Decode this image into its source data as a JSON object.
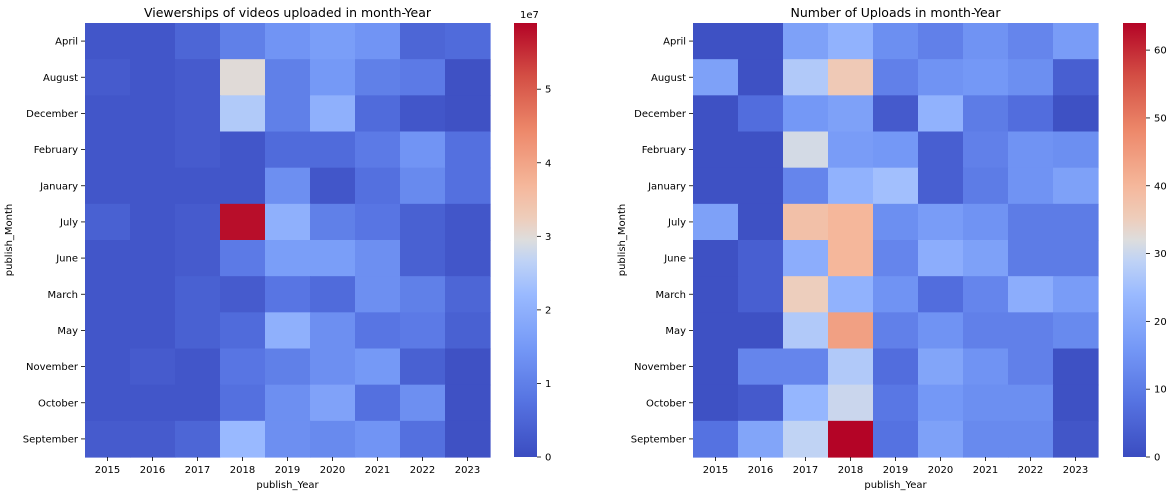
{
  "chart_data": [
    {
      "type": "heatmap",
      "title": "Viewerships of videos uploaded in month-Year",
      "xlabel": "publish_Year",
      "ylabel": "publish_Month",
      "x": [
        "2015",
        "2016",
        "2017",
        "2018",
        "2019",
        "2020",
        "2021",
        "2022",
        "2023"
      ],
      "y": [
        "April",
        "August",
        "December",
        "February",
        "January",
        "July",
        "June",
        "March",
        "May",
        "November",
        "October",
        "September"
      ],
      "values": [
        [
          0.2,
          0.2,
          0.5,
          1.0,
          1.4,
          1.6,
          1.4,
          0.5,
          0.6
        ],
        [
          0.3,
          0.2,
          0.3,
          3.0,
          1.0,
          1.5,
          1.0,
          0.9,
          0.1
        ],
        [
          0.2,
          0.2,
          0.3,
          2.5,
          1.0,
          2.0,
          0.6,
          0.2,
          0.1
        ],
        [
          0.2,
          0.2,
          0.3,
          0.2,
          0.6,
          0.6,
          0.9,
          1.4,
          0.7
        ],
        [
          0.2,
          0.2,
          0.2,
          0.2,
          1.3,
          0.2,
          0.7,
          1.2,
          0.7
        ],
        [
          0.4,
          0.2,
          0.3,
          5.8,
          2.0,
          1.0,
          0.8,
          0.4,
          0.2
        ],
        [
          0.2,
          0.2,
          0.3,
          0.9,
          1.6,
          1.6,
          1.3,
          0.4,
          0.2
        ],
        [
          0.2,
          0.2,
          0.4,
          0.3,
          0.8,
          0.6,
          1.3,
          1.0,
          0.5
        ],
        [
          0.2,
          0.2,
          0.4,
          0.6,
          2.0,
          1.3,
          0.8,
          0.9,
          0.4
        ],
        [
          0.2,
          0.3,
          0.2,
          0.8,
          1.0,
          1.3,
          1.5,
          0.4,
          0.1
        ],
        [
          0.2,
          0.2,
          0.2,
          0.7,
          1.3,
          1.7,
          0.7,
          1.3,
          0.1
        ],
        [
          0.3,
          0.3,
          0.5,
          2.2,
          1.3,
          1.2,
          1.4,
          0.7,
          0.1
        ]
      ],
      "colorbar": {
        "min": 0,
        "max": 5.9,
        "ticks": [
          "0",
          "1",
          "2",
          "3",
          "4",
          "5"
        ],
        "offset_label": "1e7"
      },
      "colormap": "coolwarm"
    },
    {
      "type": "heatmap",
      "title": "Number of Uploads in month-Year",
      "xlabel": "publish_Year",
      "ylabel": "publish_Month",
      "x": [
        "2015",
        "2016",
        "2017",
        "2018",
        "2019",
        "2020",
        "2021",
        "2022",
        "2023"
      ],
      "y": [
        "April",
        "August",
        "December",
        "February",
        "January",
        "July",
        "June",
        "March",
        "May",
        "November",
        "October",
        "September"
      ],
      "values": [
        [
          1,
          1,
          18,
          22,
          14,
          11,
          15,
          12,
          17
        ],
        [
          18,
          1,
          27,
          36,
          11,
          15,
          16,
          14,
          4
        ],
        [
          1,
          7,
          16,
          18,
          3,
          22,
          10,
          7,
          1
        ],
        [
          1,
          1,
          31,
          17,
          16,
          4,
          11,
          15,
          14
        ],
        [
          1,
          1,
          12,
          22,
          25,
          4,
          10,
          15,
          18
        ],
        [
          18,
          1,
          38,
          40,
          14,
          17,
          15,
          10,
          10
        ],
        [
          1,
          4,
          21,
          40,
          12,
          21,
          18,
          10,
          10
        ],
        [
          1,
          4,
          35,
          22,
          15,
          7,
          12,
          21,
          17
        ],
        [
          1,
          1,
          27,
          44,
          11,
          15,
          11,
          11,
          13
        ],
        [
          1,
          12,
          12,
          27,
          7,
          19,
          15,
          11,
          1
        ],
        [
          1,
          3,
          23,
          30,
          9,
          16,
          14,
          14,
          1
        ],
        [
          8,
          19,
          29,
          64,
          8,
          18,
          13,
          13,
          2
        ]
      ],
      "colorbar": {
        "min": 0,
        "max": 64,
        "ticks": [
          "0",
          "10",
          "20",
          "30",
          "40",
          "50",
          "60"
        ]
      },
      "colormap": "coolwarm"
    }
  ]
}
